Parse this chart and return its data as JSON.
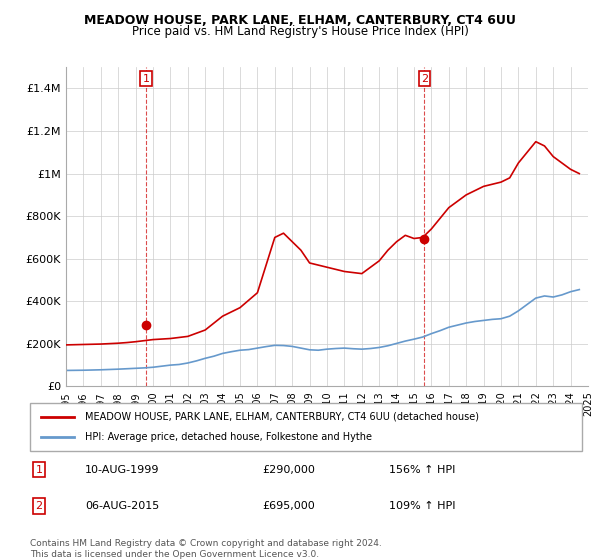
{
  "title1": "MEADOW HOUSE, PARK LANE, ELHAM, CANTERBURY, CT4 6UU",
  "title2": "Price paid vs. HM Land Registry's House Price Index (HPI)",
  "legend_line1": "MEADOW HOUSE, PARK LANE, ELHAM, CANTERBURY, CT4 6UU (detached house)",
  "legend_line2": "HPI: Average price, detached house, Folkestone and Hythe",
  "footer1": "Contains HM Land Registry data © Crown copyright and database right 2024.",
  "footer2": "This data is licensed under the Open Government Licence v3.0.",
  "annotation1_label": "1",
  "annotation1_date": "10-AUG-1999",
  "annotation1_price": "£290,000",
  "annotation1_hpi": "156% ↑ HPI",
  "annotation2_label": "2",
  "annotation2_date": "06-AUG-2015",
  "annotation2_price": "£695,000",
  "annotation2_hpi": "109% ↑ HPI",
  "red_color": "#cc0000",
  "blue_color": "#6699cc",
  "marker_color": "#cc0000",
  "vline_color": "#cc0000",
  "ylim_max": 1500000,
  "yticks": [
    0,
    200000,
    400000,
    600000,
    800000,
    1000000,
    1200000,
    1400000
  ],
  "ytick_labels": [
    "£0",
    "£200K",
    "£400K",
    "£600K",
    "£800K",
    "£1M",
    "£1.2M",
    "£1.4M"
  ],
  "hpi_years": [
    1995,
    1995.5,
    1996,
    1996.5,
    1997,
    1997.5,
    1998,
    1998.5,
    1999,
    1999.5,
    2000,
    2000.5,
    2001,
    2001.5,
    2002,
    2002.5,
    2003,
    2003.5,
    2004,
    2004.5,
    2005,
    2005.5,
    2006,
    2006.5,
    2007,
    2007.5,
    2008,
    2008.5,
    2009,
    2009.5,
    2010,
    2010.5,
    2011,
    2011.5,
    2012,
    2012.5,
    2013,
    2013.5,
    2014,
    2014.5,
    2015,
    2015.5,
    2016,
    2016.5,
    2017,
    2017.5,
    2018,
    2018.5,
    2019,
    2019.5,
    2020,
    2020.5,
    2021,
    2021.5,
    2022,
    2022.5,
    2023,
    2023.5,
    2024,
    2024.5
  ],
  "hpi_values": [
    75000,
    75500,
    76000,
    77000,
    78000,
    79500,
    81000,
    83000,
    85000,
    87000,
    90000,
    95000,
    100000,
    103000,
    110000,
    120000,
    132000,
    142000,
    155000,
    163000,
    170000,
    173000,
    180000,
    187000,
    193000,
    192000,
    188000,
    180000,
    172000,
    170000,
    175000,
    178000,
    180000,
    177000,
    175000,
    178000,
    183000,
    191000,
    202000,
    213000,
    222000,
    232000,
    248000,
    262000,
    278000,
    288000,
    298000,
    305000,
    310000,
    315000,
    318000,
    330000,
    355000,
    385000,
    415000,
    425000,
    420000,
    430000,
    445000,
    455000
  ],
  "red_years": [
    1995,
    1995.5,
    1996,
    1996.5,
    1997,
    1997.5,
    1998,
    1998.5,
    1999,
    1999.5,
    2000,
    2001,
    2002,
    2003,
    2004,
    2005,
    2006,
    2007,
    2007.5,
    2008,
    2008.5,
    2009,
    2010,
    2011,
    2012,
    2013,
    2013.5,
    2014,
    2014.5,
    2015,
    2015.5,
    2016,
    2016.5,
    2017,
    2017.5,
    2018,
    2018.5,
    2019,
    2019.5,
    2020,
    2020.5,
    2021,
    2021.5,
    2022,
    2022.5,
    2023,
    2023.5,
    2024,
    2024.5
  ],
  "red_values": [
    195000,
    196000,
    197000,
    198000,
    199000,
    201000,
    203000,
    206000,
    210000,
    215000,
    220000,
    225000,
    235000,
    265000,
    330000,
    370000,
    440000,
    700000,
    720000,
    680000,
    640000,
    580000,
    560000,
    540000,
    530000,
    590000,
    640000,
    680000,
    710000,
    695000,
    700000,
    740000,
    790000,
    840000,
    870000,
    900000,
    920000,
    940000,
    950000,
    960000,
    980000,
    1050000,
    1100000,
    1150000,
    1130000,
    1080000,
    1050000,
    1020000,
    1000000
  ],
  "sale1_x": 1999.6,
  "sale1_y": 290000,
  "sale2_x": 2015.6,
  "sale2_y": 695000,
  "xmin": 1995,
  "xmax": 2025
}
